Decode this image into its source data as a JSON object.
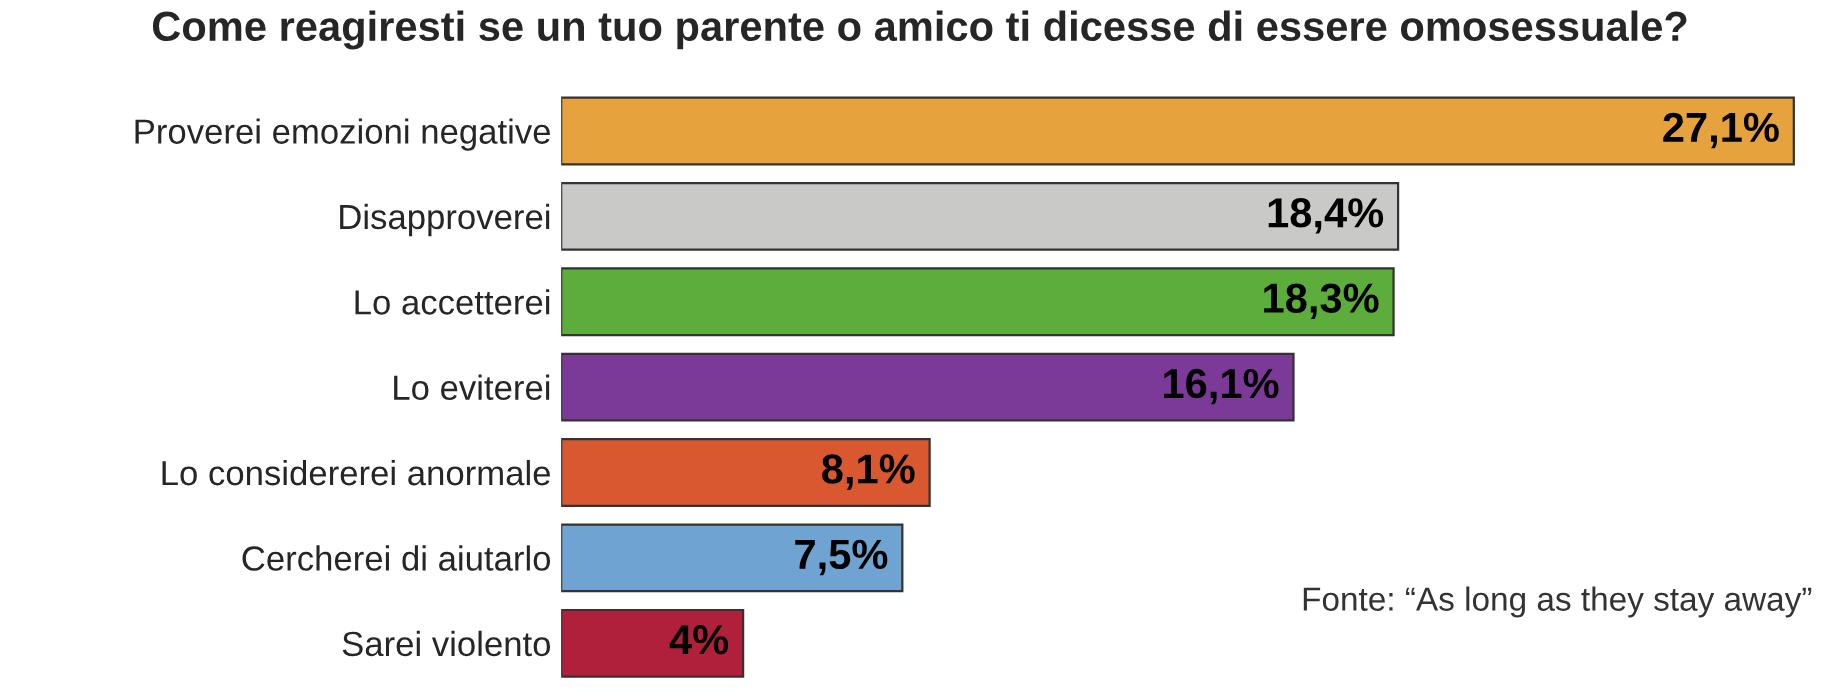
{
  "chart_data": {
    "type": "bar",
    "orientation": "horizontal",
    "title": "Come reagiresti se un tuo parente o amico ti dicesse di essere omosessuale?",
    "categories": [
      "Proverei emozioni negative",
      "Disapproverei",
      "Lo accetterei",
      "Lo eviterei",
      "Lo considererei anormale",
      "Cercherei di aiutarlo",
      "Sarei violento"
    ],
    "values": [
      27.1,
      18.4,
      18.3,
      16.1,
      8.1,
      7.5,
      4
    ],
    "value_labels": [
      "27,1%",
      "18,4%",
      "18,3%",
      "16,1%",
      "8,1%",
      "7,5%",
      "4%"
    ],
    "colors": [
      "#e6a23c",
      "#c9c9c7",
      "#5cad3c",
      "#7b3a97",
      "#d9582f",
      "#6fa4d2",
      "#b0203a"
    ],
    "tick_labels": "y",
    "grid": false,
    "legend": false,
    "annotations": [
      "Fonte: “As long as they stay away”"
    ]
  }
}
